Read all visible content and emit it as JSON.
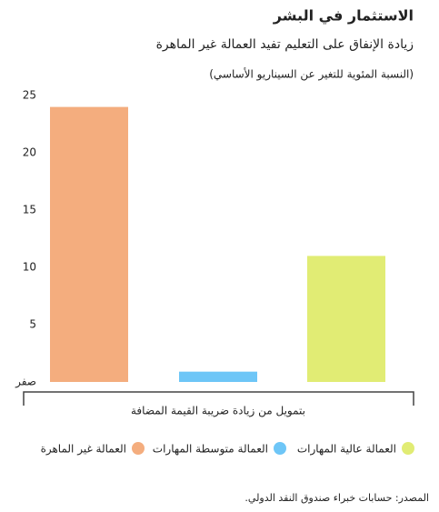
{
  "chart_data": {
    "type": "bar",
    "title": "الاستثمار في البشر",
    "subtitle": "زيادة الإنفاق على التعليم تفيد العمالة غير الماهرة",
    "note": "(النسبة المئوية للتغير عن السيناريو الأساسي)",
    "categories": [
      "بتمويل من زيادة ضريبة القيمة المضافة"
    ],
    "series": [
      {
        "name": "العمالة غير الماهرة",
        "color": "#f4ad7e",
        "values": [
          24
        ]
      },
      {
        "name": "العمالة متوسطة المهارات",
        "color": "#6ec6f7",
        "values": [
          0.9
        ]
      },
      {
        "name": "العمالة عالية المهارات",
        "color": "#e1ec74",
        "values": [
          11
        ]
      }
    ],
    "ylim": [
      0,
      25
    ],
    "yticks": [
      {
        "value": 0,
        "label": "صفر"
      },
      5,
      10,
      15,
      20,
      25
    ],
    "grid": false,
    "source": "المصدر: حسابات خبراء صندوق النقد الدولي."
  }
}
